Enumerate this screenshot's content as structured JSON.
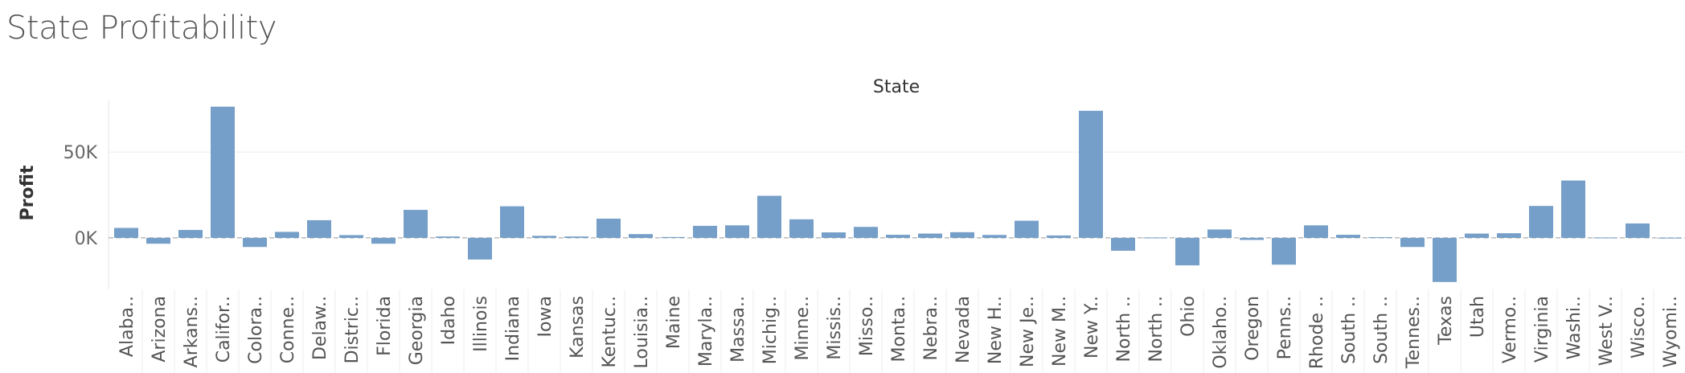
{
  "page": {
    "title": "State Profitability"
  },
  "chart_data": {
    "type": "bar",
    "title": "State Profitability",
    "column_header": "State",
    "xlabel": "",
    "ylabel": "Profit",
    "ylim": [
      -30000,
      80000
    ],
    "y_ticks": [
      0,
      50000
    ],
    "y_tick_labels": [
      "0K",
      "50K"
    ],
    "grid": true,
    "colors": {
      "bar": "#759fc8",
      "grid": "#eeeeee",
      "zero_line": "#999999"
    },
    "categories": [
      "Alaba..",
      "Arizona",
      "Arkans..",
      "Califor..",
      "Colora..",
      "Conne..",
      "Delaw..",
      "Distric..",
      "Florida",
      "Georgia",
      "Idaho",
      "Illinois",
      "Indiana",
      "Iowa",
      "Kansas",
      "Kentuc..",
      "Louisia..",
      "Maine",
      "Maryla..",
      "Massa..",
      "Michig..",
      "Minne..",
      "Missis..",
      "Misso..",
      "Monta..",
      "Nebra..",
      "Nevada",
      "New H..",
      "New Je..",
      "New M..",
      "New Y..",
      "North ..",
      "North ..",
      "Ohio",
      "Oklaho..",
      "Oregon",
      "Penns..",
      "Rhode ..",
      "South ..",
      "South ..",
      "Tennes..",
      "Texas",
      "Utah",
      "Vermo..",
      "Virginia",
      "Washi..",
      "West V..",
      "Wisco..",
      "Wyomi.."
    ],
    "values": [
      5800,
      -3400,
      4600,
      76400,
      -5300,
      3500,
      10300,
      1600,
      -3400,
      16300,
      800,
      -12600,
      18400,
      1200,
      800,
      11200,
      2200,
      500,
      7000,
      7300,
      24500,
      10800,
      3200,
      6400,
      1800,
      2500,
      3300,
      1700,
      10000,
      1400,
      74000,
      -7500,
      200,
      -16000,
      4900,
      -1200,
      -15600,
      7300,
      1800,
      400,
      -5300,
      -25700,
      2500,
      2700,
      18600,
      33400,
      200,
      8400,
      100
    ]
  }
}
